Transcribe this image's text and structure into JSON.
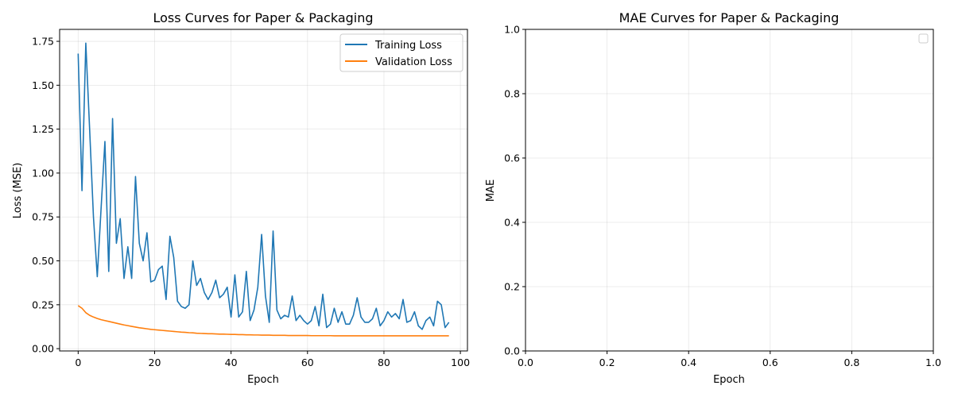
{
  "chart_data": [
    {
      "type": "line",
      "title": "Loss Curves for Paper & Packaging",
      "xlabel": "Epoch",
      "ylabel": "Loss (MSE)",
      "xlim": [
        -4.85,
        101.85
      ],
      "ylim": [
        -0.013,
        1.818
      ],
      "xticks": [
        0,
        20,
        40,
        60,
        80,
        100
      ],
      "yticks": [
        0.0,
        0.25,
        0.5,
        0.75,
        1.0,
        1.25,
        1.5,
        1.75
      ],
      "xtick_labels": [
        "0",
        "20",
        "40",
        "60",
        "80",
        "100"
      ],
      "ytick_labels": [
        "0.00",
        "0.25",
        "0.50",
        "0.75",
        "1.00",
        "1.25",
        "1.50",
        "1.75"
      ],
      "grid": true,
      "legend_position": "top-right",
      "series": [
        {
          "name": "Training Loss",
          "color": "#1f77b4",
          "x": [
            0,
            1,
            2,
            3,
            4,
            5,
            6,
            7,
            8,
            9,
            10,
            11,
            12,
            13,
            14,
            15,
            16,
            17,
            18,
            19,
            20,
            21,
            22,
            23,
            24,
            25,
            26,
            27,
            28,
            29,
            30,
            31,
            32,
            33,
            34,
            35,
            36,
            37,
            38,
            39,
            40,
            41,
            42,
            43,
            44,
            45,
            46,
            47,
            48,
            49,
            50,
            51,
            52,
            53,
            54,
            55,
            56,
            57,
            58,
            59,
            60,
            61,
            62,
            63,
            64,
            65,
            66,
            67,
            68,
            69,
            70,
            71,
            72,
            73,
            74,
            75,
            76,
            77,
            78,
            79,
            80,
            81,
            82,
            83,
            84,
            85,
            86,
            87,
            88,
            89,
            90,
            91,
            92,
            93,
            94,
            95,
            96,
            97
          ],
          "values": [
            1.68,
            0.9,
            1.74,
            1.25,
            0.75,
            0.41,
            0.8,
            1.18,
            0.44,
            1.31,
            0.6,
            0.74,
            0.4,
            0.58,
            0.4,
            0.98,
            0.6,
            0.5,
            0.66,
            0.38,
            0.39,
            0.45,
            0.47,
            0.28,
            0.64,
            0.52,
            0.27,
            0.24,
            0.23,
            0.25,
            0.5,
            0.36,
            0.4,
            0.32,
            0.28,
            0.32,
            0.39,
            0.29,
            0.31,
            0.35,
            0.18,
            0.42,
            0.18,
            0.21,
            0.44,
            0.16,
            0.22,
            0.35,
            0.65,
            0.3,
            0.15,
            0.67,
            0.22,
            0.17,
            0.19,
            0.18,
            0.3,
            0.16,
            0.19,
            0.16,
            0.14,
            0.16,
            0.24,
            0.13,
            0.31,
            0.12,
            0.14,
            0.23,
            0.15,
            0.21,
            0.14,
            0.14,
            0.19,
            0.29,
            0.18,
            0.15,
            0.15,
            0.17,
            0.23,
            0.13,
            0.16,
            0.21,
            0.18,
            0.2,
            0.17,
            0.28,
            0.15,
            0.16,
            0.21,
            0.13,
            0.11,
            0.16,
            0.18,
            0.13,
            0.27,
            0.25,
            0.12,
            0.15
          ]
        },
        {
          "name": "Validation Loss",
          "color": "#ff7f0e",
          "x": [
            0,
            1,
            2,
            3,
            4,
            5,
            6,
            7,
            8,
            9,
            10,
            11,
            12,
            13,
            14,
            15,
            16,
            17,
            18,
            19,
            20,
            21,
            22,
            23,
            24,
            25,
            26,
            27,
            28,
            29,
            30,
            31,
            32,
            33,
            34,
            35,
            36,
            37,
            38,
            39,
            40,
            41,
            42,
            43,
            44,
            45,
            46,
            47,
            48,
            49,
            50,
            51,
            52,
            53,
            54,
            55,
            56,
            57,
            58,
            59,
            60,
            61,
            62,
            63,
            64,
            65,
            66,
            67,
            68,
            69,
            70,
            71,
            72,
            73,
            74,
            75,
            76,
            77,
            78,
            79,
            80,
            81,
            82,
            83,
            84,
            85,
            86,
            87,
            88,
            89,
            90,
            91,
            92,
            93,
            94,
            95,
            96,
            97
          ],
          "values": [
            0.245,
            0.23,
            0.205,
            0.19,
            0.18,
            0.172,
            0.165,
            0.16,
            0.155,
            0.15,
            0.145,
            0.14,
            0.135,
            0.131,
            0.127,
            0.123,
            0.119,
            0.116,
            0.113,
            0.11,
            0.108,
            0.106,
            0.104,
            0.102,
            0.1,
            0.098,
            0.096,
            0.094,
            0.093,
            0.091,
            0.09,
            0.088,
            0.087,
            0.086,
            0.085,
            0.085,
            0.084,
            0.083,
            0.083,
            0.082,
            0.081,
            0.081,
            0.08,
            0.08,
            0.079,
            0.079,
            0.078,
            0.078,
            0.077,
            0.077,
            0.077,
            0.076,
            0.076,
            0.076,
            0.076,
            0.075,
            0.075,
            0.075,
            0.075,
            0.075,
            0.075,
            0.074,
            0.074,
            0.074,
            0.074,
            0.074,
            0.074,
            0.073,
            0.073,
            0.073,
            0.073,
            0.073,
            0.073,
            0.073,
            0.073,
            0.073,
            0.073,
            0.073,
            0.073,
            0.073,
            0.073,
            0.073,
            0.073,
            0.073,
            0.073,
            0.073,
            0.073,
            0.073,
            0.073,
            0.073,
            0.073,
            0.073,
            0.073,
            0.073,
            0.073,
            0.073,
            0.073,
            0.073
          ]
        }
      ]
    },
    {
      "type": "line",
      "title": "MAE Curves for Paper & Packaging",
      "xlabel": "Epoch",
      "ylabel": "MAE",
      "xlim": [
        0,
        1
      ],
      "ylim": [
        0,
        1
      ],
      "xticks": [
        0,
        0.2,
        0.4,
        0.6,
        0.8,
        1.0
      ],
      "yticks": [
        0,
        0.2,
        0.4,
        0.6,
        0.8,
        1.0
      ],
      "xtick_labels": [
        "0.0",
        "0.2",
        "0.4",
        "0.6",
        "0.8",
        "1.0"
      ],
      "ytick_labels": [
        "0.0",
        "0.2",
        "0.4",
        "0.6",
        "0.8",
        "1.0"
      ],
      "grid": true,
      "legend_position": "top-right",
      "legend_empty": true,
      "series": []
    }
  ]
}
